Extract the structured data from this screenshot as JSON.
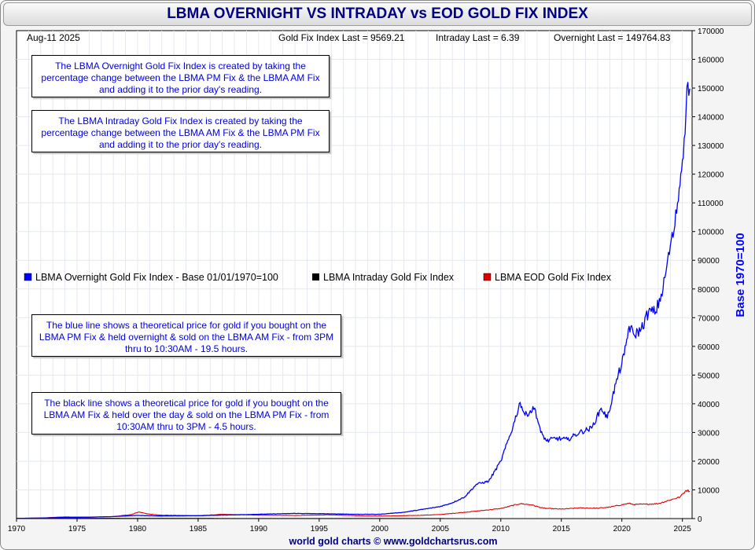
{
  "title": "LBMA OVERNIGHT VS INTRADAY vs EOD GOLD FIX INDEX",
  "header": {
    "date": "Aug-11  2025",
    "gold_fix_last": "Gold Fix Index Last = 9569.21",
    "intraday_last": "Intraday Last = 6.39",
    "overnight_last": "Overnight Last = 149764.83"
  },
  "notes": {
    "overnight_def": "The LBMA Overnight Gold Fix Index is created by taking the percentage change between the LBMA PM Fix & the LBMA AM Fix and adding it to the prior day's reading.",
    "intraday_def": "The LBMA Intraday Gold Fix Index is created by taking the percentage change between the LBMA AM Fix & the LBMA PM Fix and adding it to the prior day's reading.",
    "blue_line": "The blue line shows a theoretical price for gold if you bought on the LBMA PM Fix & held overnight & sold on the LBMA AM Fix - from 3PM thru to 10:30AM - 19.5 hours.",
    "black_line": "The black line shows a theoretical price for gold if you bought on the LBMA AM Fix & held over the day & sold on the LBMA PM Fix - from 10:30AM thru to 3PM - 4.5 hours."
  },
  "footer": "world gold charts © www.goldchartsrus.com",
  "colors": {
    "overnight": "#0000ff",
    "intraday": "#000000",
    "eod": "#dd0000",
    "title": "#000080"
  },
  "chart_data": {
    "type": "line",
    "title": "LBMA OVERNIGHT VS INTRADAY vs EOD GOLD FIX INDEX",
    "xlabel": "",
    "ylabel": "Base 1970=100",
    "xlim": [
      1970,
      2025.8
    ],
    "ylim": [
      0,
      170000
    ],
    "x_ticks": [
      "1970",
      "1975",
      "1980",
      "1985",
      "1990",
      "1995",
      "2000",
      "2005",
      "2010",
      "2015",
      "2020",
      "2025"
    ],
    "y_ticks": [
      "0",
      "10000",
      "20000",
      "30000",
      "40000",
      "50000",
      "60000",
      "70000",
      "80000",
      "90000",
      "100000",
      "110000",
      "120000",
      "130000",
      "140000",
      "150000",
      "160000",
      "170000"
    ],
    "grid": true,
    "legend_position": "middle",
    "series": [
      {
        "name": "LBMA Overnight Gold Fix Index - Base 01/01/1970=100",
        "color": "#0000ff",
        "points": [
          [
            1970,
            100
          ],
          [
            1972,
            180
          ],
          [
            1974,
            400
          ],
          [
            1976,
            500
          ],
          [
            1978,
            700
          ],
          [
            1980,
            1100
          ],
          [
            1982,
            900
          ],
          [
            1985,
            1000
          ],
          [
            1988,
            1300
          ],
          [
            1990,
            1500
          ],
          [
            1993,
            1800
          ],
          [
            1995,
            1700
          ],
          [
            1998,
            1500
          ],
          [
            2000,
            1500
          ],
          [
            2002,
            2200
          ],
          [
            2004,
            3500
          ],
          [
            2005,
            4200
          ],
          [
            2006,
            5500
          ],
          [
            2007,
            7500
          ],
          [
            2008,
            12000
          ],
          [
            2009,
            13000
          ],
          [
            2010,
            20000
          ],
          [
            2011,
            32000
          ],
          [
            2011.6,
            40500
          ],
          [
            2012,
            36000
          ],
          [
            2012.8,
            38500
          ],
          [
            2013.3,
            30000
          ],
          [
            2013.8,
            27000
          ],
          [
            2014.5,
            28000
          ],
          [
            2015.5,
            27500
          ],
          [
            2016.5,
            30000
          ],
          [
            2017.5,
            31500
          ],
          [
            2018.3,
            38500
          ],
          [
            2018.8,
            35000
          ],
          [
            2019.5,
            47000
          ],
          [
            2020.2,
            57000
          ],
          [
            2020.6,
            67000
          ],
          [
            2021,
            64000
          ],
          [
            2021.6,
            66000
          ],
          [
            2022.2,
            72000
          ],
          [
            2022.8,
            72000
          ],
          [
            2023.4,
            80000
          ],
          [
            2024,
            95000
          ],
          [
            2024.3,
            100000
          ],
          [
            2024.6,
            110000
          ],
          [
            2025,
            125000
          ],
          [
            2025.3,
            142000
          ],
          [
            2025.45,
            152000
          ],
          [
            2025.61,
            149764.83
          ]
        ]
      },
      {
        "name": "LBMA Intraday Gold Fix Index",
        "color": "#000000",
        "points": [
          [
            1970,
            100
          ],
          [
            1975,
            90
          ],
          [
            1980,
            60
          ],
          [
            1990,
            30
          ],
          [
            2000,
            18
          ],
          [
            2010,
            10
          ],
          [
            2020,
            7
          ],
          [
            2025.61,
            6.39
          ]
        ]
      },
      {
        "name": "LBMA EOD Gold Fix Index",
        "color": "#dd0000",
        "points": [
          [
            1970,
            100
          ],
          [
            1972,
            200
          ],
          [
            1974,
            600
          ],
          [
            1976,
            450
          ],
          [
            1978,
            700
          ],
          [
            1979.5,
            1400
          ],
          [
            1980.1,
            2300
          ],
          [
            1981,
            1500
          ],
          [
            1982,
            1200
          ],
          [
            1985,
            1000
          ],
          [
            1987,
            1450
          ],
          [
            1990,
            1200
          ],
          [
            1993,
            1100
          ],
          [
            1996,
            1300
          ],
          [
            1999,
            900
          ],
          [
            2001,
            900
          ],
          [
            2003,
            1100
          ],
          [
            2005,
            1400
          ],
          [
            2006,
            1800
          ],
          [
            2008,
            2600
          ],
          [
            2010,
            3500
          ],
          [
            2011.6,
            5200
          ],
          [
            2012.5,
            4800
          ],
          [
            2013.5,
            3600
          ],
          [
            2015,
            3300
          ],
          [
            2016.5,
            3700
          ],
          [
            2018,
            3600
          ],
          [
            2019,
            4000
          ],
          [
            2020.6,
            5300
          ],
          [
            2021,
            4900
          ],
          [
            2022,
            5000
          ],
          [
            2023,
            5200
          ],
          [
            2024,
            6500
          ],
          [
            2024.8,
            7500
          ],
          [
            2025.3,
            9800
          ],
          [
            2025.61,
            9569.21
          ]
        ]
      }
    ]
  }
}
